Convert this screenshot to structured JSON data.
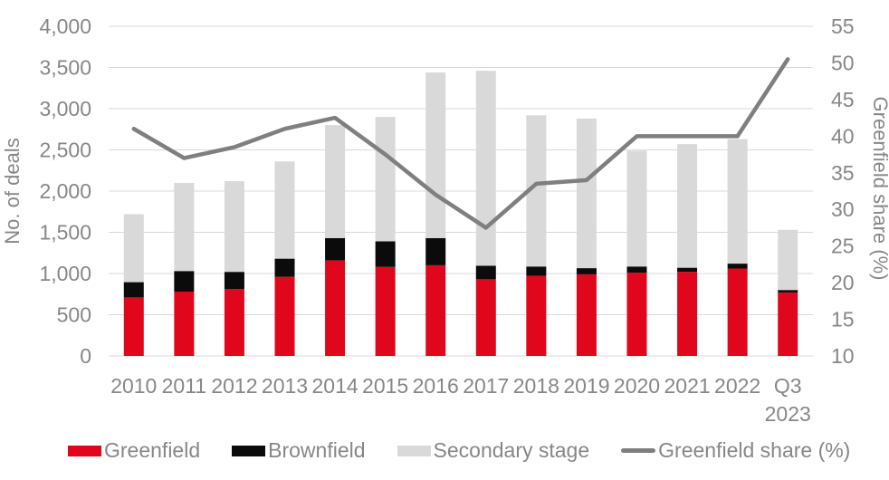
{
  "chart_data": {
    "type": "bar",
    "subtype": "stacked-bars-with-line-overlay",
    "title": "",
    "categories": [
      "2010",
      "2011",
      "2012",
      "2013",
      "2014",
      "2015",
      "2016",
      "2017",
      "2018",
      "2019",
      "2020",
      "2021",
      "2022",
      "Q3\n2023"
    ],
    "bar_series": [
      {
        "name": "Greenfield",
        "color": "#e0061b",
        "values": [
          710,
          780,
          810,
          960,
          1160,
          1080,
          1100,
          930,
          970,
          990,
          1010,
          1020,
          1060,
          770
        ]
      },
      {
        "name": "Brownfield",
        "color": "#0b0b0b",
        "values": [
          185,
          250,
          210,
          220,
          270,
          310,
          330,
          165,
          115,
          75,
          75,
          50,
          60,
          30
        ]
      },
      {
        "name": "Secondary stage",
        "color": "#d9d9d9",
        "values": [
          825,
          1070,
          1100,
          1180,
          1370,
          1510,
          2010,
          2365,
          1835,
          1815,
          1405,
          1500,
          1510,
          730
        ]
      }
    ],
    "bar_totals": [
      1720,
      2100,
      2120,
      2360,
      2800,
      2900,
      3440,
      3460,
      2920,
      2880,
      2490,
      2570,
      2630,
      1530
    ],
    "line_series": {
      "name": "Greenfield share (%)",
      "color": "#7f7f7f",
      "axis": "right",
      "values": [
        41,
        37,
        38.5,
        41,
        42.5,
        37.5,
        32,
        27.5,
        33.5,
        34,
        40,
        40,
        40,
        50.5
      ]
    },
    "left_axis": {
      "title": "No. of deals",
      "min": 0,
      "max": 4000,
      "step": 500,
      "tick_labels": [
        "4,000",
        "3,500",
        "3,000",
        "2,500",
        "2,000",
        "1,500",
        "1,000",
        "500",
        "0"
      ]
    },
    "right_axis": {
      "title": "Greenfield share (%)",
      "min": 10,
      "max": 55,
      "step": 5,
      "tick_labels": [
        "55",
        "50",
        "45",
        "40",
        "35",
        "30",
        "25",
        "20",
        "15",
        "10"
      ]
    },
    "grid": "horizontal",
    "legend_position": "bottom"
  },
  "legend": {
    "items": [
      {
        "label": "Greenfield",
        "color": "#e0061b",
        "shape": "rect"
      },
      {
        "label": "Brownfield",
        "color": "#0b0b0b",
        "shape": "rect"
      },
      {
        "label": "Secondary stage",
        "color": "#d9d9d9",
        "shape": "rect"
      },
      {
        "label": "Greenfield share (%)",
        "color": "#7f7f7f",
        "shape": "line"
      }
    ]
  },
  "styles": {
    "background": "#ffffff",
    "grid_color": "#d9d9d9",
    "text_color": "#878787",
    "line_stroke_width": 4.5
  }
}
